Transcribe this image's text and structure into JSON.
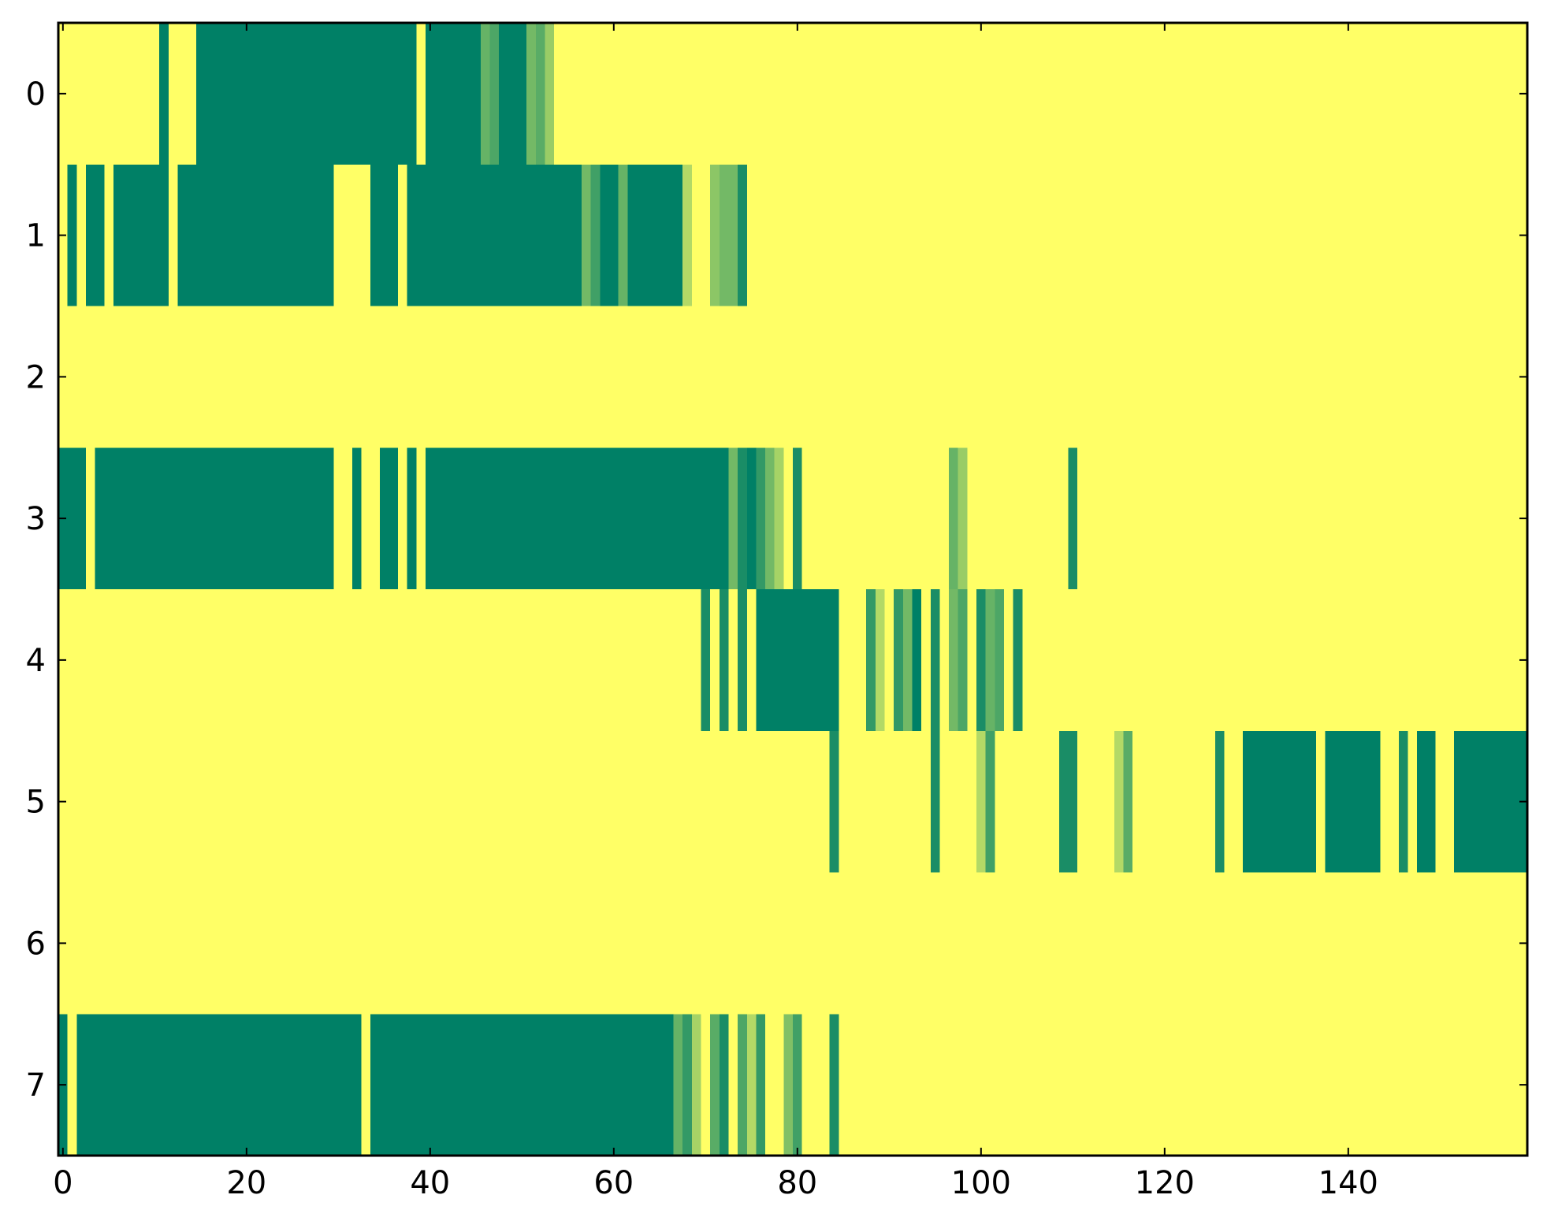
{
  "chart_data": {
    "type": "heatmap",
    "title": "",
    "xlabel": "",
    "ylabel": "",
    "xlim": [
      -0.5,
      159.5
    ],
    "ylim": [
      7.5,
      -0.5
    ],
    "x_ticks": [
      0,
      20,
      40,
      60,
      80,
      100,
      120,
      140
    ],
    "x_tick_labels": [
      "0",
      "20",
      "40",
      "60",
      "80",
      "100",
      "120",
      "140"
    ],
    "y_ticks": [
      0,
      1,
      2,
      3,
      4,
      5,
      6,
      7
    ],
    "y_tick_labels": [
      "0",
      "1",
      "2",
      "3",
      "4",
      "5",
      "6",
      "7"
    ],
    "columns": 160,
    "rows_count": 8,
    "colormap": "summer_r",
    "value_range": [
      0,
      1
    ],
    "background_value": 0,
    "grid": false,
    "colors": {
      "low": "#ffff66",
      "high": "#008066",
      "axes": "#000000",
      "background": "#ffffff"
    },
    "rows": [
      {
        "row": 0,
        "segments": [
          [
            11,
            11,
            1
          ],
          [
            15,
            38,
            1
          ],
          [
            40,
            45,
            1
          ],
          [
            46,
            46,
            0.6
          ],
          [
            47,
            47,
            0.7
          ],
          [
            48,
            50,
            1
          ],
          [
            51,
            51,
            0.55
          ],
          [
            52,
            52,
            0.65
          ],
          [
            53,
            53,
            0.4
          ]
        ]
      },
      {
        "row": 1,
        "segments": [
          [
            1,
            1,
            1
          ],
          [
            3,
            4,
            1
          ],
          [
            6,
            11,
            1
          ],
          [
            13,
            29,
            1
          ],
          [
            34,
            36,
            1
          ],
          [
            38,
            56,
            1
          ],
          [
            57,
            57,
            0.55
          ],
          [
            58,
            58,
            0.75
          ],
          [
            59,
            60,
            1
          ],
          [
            61,
            61,
            0.6
          ],
          [
            62,
            67,
            1
          ],
          [
            68,
            68,
            0.3
          ],
          [
            71,
            71,
            0.45
          ],
          [
            72,
            73,
            0.55
          ],
          [
            74,
            74,
            0.9
          ]
        ]
      },
      {
        "row": 2,
        "segments": []
      },
      {
        "row": 3,
        "segments": [
          [
            0,
            2,
            1
          ],
          [
            4,
            29,
            1
          ],
          [
            32,
            32,
            1
          ],
          [
            35,
            36,
            1
          ],
          [
            38,
            38,
            1
          ],
          [
            40,
            72,
            1
          ],
          [
            73,
            73,
            0.55
          ],
          [
            74,
            74,
            0.9
          ],
          [
            75,
            75,
            1
          ],
          [
            76,
            76,
            0.8
          ],
          [
            77,
            77,
            0.55
          ],
          [
            78,
            78,
            0.35
          ],
          [
            80,
            80,
            0.9
          ],
          [
            97,
            97,
            0.6
          ],
          [
            98,
            98,
            0.4
          ],
          [
            110,
            110,
            0.9
          ]
        ]
      },
      {
        "row": 4,
        "segments": [
          [
            70,
            70,
            0.9
          ],
          [
            72,
            72,
            0.9
          ],
          [
            74,
            74,
            0.9
          ],
          [
            76,
            84,
            1
          ],
          [
            88,
            88,
            0.8
          ],
          [
            89,
            89,
            0.3
          ],
          [
            91,
            91,
            0.8
          ],
          [
            92,
            92,
            0.55
          ],
          [
            93,
            93,
            1
          ],
          [
            95,
            95,
            0.9
          ],
          [
            97,
            97,
            0.55
          ],
          [
            98,
            98,
            0.7
          ],
          [
            100,
            100,
            0.9
          ],
          [
            101,
            101,
            0.6
          ],
          [
            102,
            102,
            0.7
          ],
          [
            104,
            104,
            0.9
          ]
        ]
      },
      {
        "row": 5,
        "segments": [
          [
            84,
            84,
            0.9
          ],
          [
            95,
            95,
            0.9
          ],
          [
            100,
            100,
            0.3
          ],
          [
            101,
            101,
            0.75
          ],
          [
            109,
            110,
            0.9
          ],
          [
            115,
            115,
            0.3
          ],
          [
            116,
            116,
            0.65
          ],
          [
            126,
            126,
            0.9
          ],
          [
            129,
            136,
            1
          ],
          [
            138,
            143,
            1
          ],
          [
            146,
            146,
            0.9
          ],
          [
            148,
            149,
            1
          ],
          [
            152,
            159,
            1
          ]
        ]
      },
      {
        "row": 6,
        "segments": []
      },
      {
        "row": 7,
        "segments": [
          [
            -0.5,
            0,
            1
          ],
          [
            2,
            32,
            1
          ],
          [
            34,
            66,
            1
          ],
          [
            67,
            67,
            0.6
          ],
          [
            68,
            68,
            0.8
          ],
          [
            69,
            69,
            0.35
          ],
          [
            71,
            71,
            0.65
          ],
          [
            72,
            72,
            0.9
          ],
          [
            74,
            74,
            0.7
          ],
          [
            75,
            75,
            0.3
          ],
          [
            76,
            76,
            0.8
          ],
          [
            79,
            79,
            0.5
          ],
          [
            80,
            80,
            0.75
          ],
          [
            84,
            84,
            0.9
          ]
        ]
      }
    ]
  }
}
